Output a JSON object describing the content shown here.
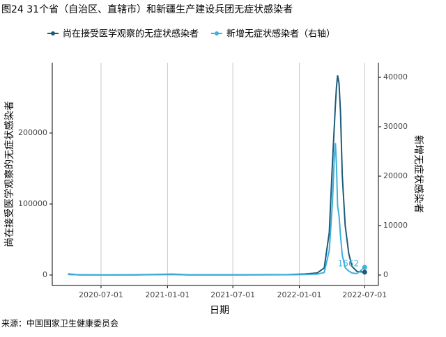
{
  "chart_data": {
    "type": "line",
    "title": "图24 31个省（自治区、直辖市）和新疆生产建设兵团无症状感染者",
    "x_label": "日期",
    "y_label": "尚在接受医学观察的无症状感染者",
    "y2_label": "新增无症状感染者",
    "source": "来源：中国国家卫生健康委员会",
    "x": [
      "2020-04-01",
      "2020-05-01",
      "2020-07-01",
      "2020-10-01",
      "2021-01-15",
      "2021-03-01",
      "2021-08-01",
      "2021-12-01",
      "2022-01-15",
      "2022-02-20",
      "2022-03-11",
      "2022-03-25",
      "2022-04-03",
      "2022-04-08",
      "2022-04-11",
      "2022-04-14",
      "2022-04-17",
      "2022-04-21",
      "2022-04-25",
      "2022-04-30",
      "2022-05-08",
      "2022-05-18",
      "2022-05-27",
      "2022-06-10",
      "2022-07-01"
    ],
    "series": [
      {
        "name": "尚在接受医学观察的无症状感染者",
        "color": "#1d5a7a",
        "values": [
          1500,
          300,
          100,
          200,
          1200,
          200,
          300,
          600,
          1500,
          3000,
          10000,
          60000,
          160000,
          210000,
          240000,
          265000,
          281000,
          270000,
          230000,
          140000,
          70000,
          30000,
          12000,
          5000,
          4000
        ]
      },
      {
        "name": "新增无症状感染者（右轴）",
        "color": "#3db0dc",
        "axis": "y2",
        "values": [
          100,
          30,
          10,
          20,
          100,
          20,
          30,
          50,
          100,
          200,
          500,
          5000,
          15000,
          24000,
          26700,
          22000,
          14000,
          12000,
          8000,
          4000,
          1500,
          800,
          400,
          300,
          1562
        ]
      }
    ],
    "xlim": [
      "2020-02-17",
      "2022-08-08"
    ],
    "xticks": [
      "2020-07-01",
      "2021-01-01",
      "2021-07-01",
      "2022-01-01",
      "2022-07-01"
    ],
    "ylim": [
      -14700,
      299000
    ],
    "yticks": [
      0,
      100000,
      200000
    ],
    "y2lim": [
      -2113,
      42958
    ],
    "y2ticks": [
      0,
      10000,
      20000,
      30000,
      40000
    ],
    "grid": true
  }
}
